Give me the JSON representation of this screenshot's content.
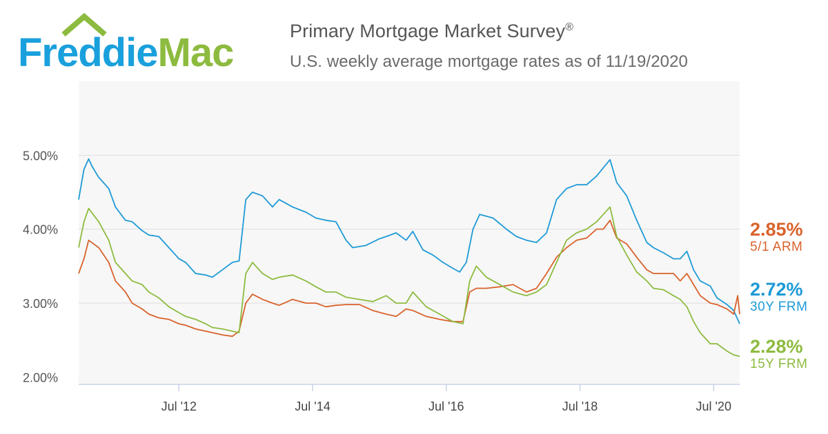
{
  "header": {
    "logo_text": "FreddieMac",
    "title": "Primary Mortgage Market Survey",
    "title_mark": "®",
    "subtitle": "U.S. weekly average mortgage rates as of 11/19/2020"
  },
  "colors": {
    "brand_blue": "#1aa0dc",
    "brand_green": "#8dbb3f",
    "frm30": "#1d9ad6",
    "arm51": "#d9622b",
    "frm15": "#8dbb3f",
    "plot_bg": "#f7f7f7",
    "grid": "#dedede"
  },
  "callouts": [
    {
      "value": "2.85%",
      "label": "5/1 ARM",
      "color": "#d9622b"
    },
    {
      "value": "2.72%",
      "label": "30Y FRM",
      "color": "#1d9ad6"
    },
    {
      "value": "2.28%",
      "label": "15Y FRM",
      "color": "#8dbb3f"
    }
  ],
  "chart_data": {
    "type": "line",
    "title": "Primary Mortgage Market Survey",
    "subtitle": "U.S. weekly average mortgage rates as of 11/19/2020",
    "x_ticks": [
      "Jul '12",
      "Jul '14",
      "Jul '16",
      "Jul '18",
      "Jul '20"
    ],
    "x_tick_values": [
      2012.5,
      2014.5,
      2016.5,
      2018.5,
      2020.5
    ],
    "xlim": [
      2011.0,
      2020.89
    ],
    "y_ticks": [
      "2.00%",
      "3.00%",
      "4.00%",
      "5.00%"
    ],
    "y_tick_values": [
      2.0,
      3.0,
      4.0,
      5.0
    ],
    "ylim": [
      1.9,
      6.0
    ],
    "grid": true,
    "series": [
      {
        "name": "30Y FRM",
        "color": "#1d9ad6",
        "x": [
          2011.0,
          2011.08,
          2011.15,
          2011.2,
          2011.3,
          2011.45,
          2011.55,
          2011.7,
          2011.8,
          2011.95,
          2012.05,
          2012.2,
          2012.35,
          2012.5,
          2012.6,
          2012.75,
          2012.9,
          2013.0,
          2013.15,
          2013.3,
          2013.4,
          2013.5,
          2013.6,
          2013.75,
          2013.9,
          2014.0,
          2014.2,
          2014.4,
          2014.55,
          2014.7,
          2014.85,
          2015.0,
          2015.1,
          2015.3,
          2015.5,
          2015.6,
          2015.75,
          2015.9,
          2016.0,
          2016.15,
          2016.3,
          2016.45,
          2016.6,
          2016.7,
          2016.8,
          2016.9,
          2017.0,
          2017.2,
          2017.4,
          2017.55,
          2017.7,
          2017.85,
          2018.0,
          2018.15,
          2018.3,
          2018.45,
          2018.6,
          2018.75,
          2018.85,
          2018.95,
          2019.05,
          2019.2,
          2019.35,
          2019.5,
          2019.6,
          2019.75,
          2019.9,
          2020.0,
          2020.1,
          2020.2,
          2020.3,
          2020.45,
          2020.55,
          2020.7,
          2020.8,
          2020.89
        ],
        "y": [
          4.4,
          4.81,
          4.95,
          4.85,
          4.7,
          4.55,
          4.3,
          4.12,
          4.1,
          3.98,
          3.92,
          3.9,
          3.75,
          3.6,
          3.55,
          3.4,
          3.38,
          3.35,
          3.45,
          3.55,
          3.57,
          4.4,
          4.5,
          4.45,
          4.3,
          4.4,
          4.3,
          4.23,
          4.15,
          4.12,
          4.1,
          3.85,
          3.75,
          3.78,
          3.87,
          3.9,
          3.95,
          3.85,
          3.97,
          3.72,
          3.65,
          3.55,
          3.47,
          3.42,
          3.55,
          4.0,
          4.2,
          4.15,
          4.0,
          3.9,
          3.85,
          3.82,
          3.95,
          4.4,
          4.55,
          4.6,
          4.6,
          4.72,
          4.83,
          4.94,
          4.63,
          4.45,
          4.12,
          3.82,
          3.75,
          3.68,
          3.6,
          3.6,
          3.7,
          3.45,
          3.3,
          3.23,
          3.07,
          2.98,
          2.9,
          2.72
        ]
      },
      {
        "name": "5/1 ARM",
        "color": "#d9622b",
        "x": [
          2011.0,
          2011.08,
          2011.15,
          2011.3,
          2011.45,
          2011.55,
          2011.7,
          2011.8,
          2011.95,
          2012.05,
          2012.2,
          2012.35,
          2012.5,
          2012.6,
          2012.75,
          2012.9,
          2013.0,
          2013.15,
          2013.3,
          2013.4,
          2013.5,
          2013.6,
          2013.75,
          2013.9,
          2014.0,
          2014.2,
          2014.4,
          2014.55,
          2014.7,
          2014.85,
          2015.0,
          2015.2,
          2015.4,
          2015.6,
          2015.75,
          2015.9,
          2016.0,
          2016.2,
          2016.4,
          2016.6,
          2016.75,
          2016.85,
          2016.95,
          2017.1,
          2017.3,
          2017.5,
          2017.7,
          2017.85,
          2018.0,
          2018.15,
          2018.3,
          2018.45,
          2018.6,
          2018.75,
          2018.85,
          2018.95,
          2019.05,
          2019.2,
          2019.35,
          2019.5,
          2019.6,
          2019.75,
          2019.9,
          2020.0,
          2020.1,
          2020.2,
          2020.3,
          2020.45,
          2020.55,
          2020.7,
          2020.8,
          2020.86,
          2020.89
        ],
        "y": [
          3.4,
          3.6,
          3.85,
          3.75,
          3.55,
          3.3,
          3.15,
          3.0,
          2.92,
          2.85,
          2.8,
          2.78,
          2.72,
          2.7,
          2.65,
          2.62,
          2.6,
          2.57,
          2.55,
          2.62,
          3.0,
          3.12,
          3.05,
          3.0,
          2.97,
          3.05,
          3.0,
          3.0,
          2.95,
          2.97,
          2.98,
          2.98,
          2.9,
          2.85,
          2.82,
          2.92,
          2.9,
          2.82,
          2.78,
          2.75,
          2.75,
          3.15,
          3.2,
          3.2,
          3.22,
          3.25,
          3.15,
          3.2,
          3.4,
          3.62,
          3.75,
          3.85,
          3.88,
          4.0,
          4.0,
          4.12,
          3.88,
          3.8,
          3.62,
          3.45,
          3.4,
          3.4,
          3.4,
          3.3,
          3.4,
          3.25,
          3.1,
          3.0,
          2.98,
          2.92,
          2.85,
          3.1,
          2.85
        ]
      },
      {
        "name": "15Y FRM",
        "color": "#8dbb3f",
        "x": [
          2011.0,
          2011.08,
          2011.15,
          2011.3,
          2011.45,
          2011.55,
          2011.7,
          2011.8,
          2011.95,
          2012.05,
          2012.2,
          2012.35,
          2012.5,
          2012.6,
          2012.75,
          2012.9,
          2013.0,
          2013.15,
          2013.3,
          2013.4,
          2013.5,
          2013.6,
          2013.75,
          2013.9,
          2014.0,
          2014.2,
          2014.4,
          2014.55,
          2014.7,
          2014.85,
          2015.0,
          2015.2,
          2015.4,
          2015.6,
          2015.75,
          2015.9,
          2016.0,
          2016.2,
          2016.4,
          2016.6,
          2016.75,
          2016.85,
          2016.95,
          2017.1,
          2017.3,
          2017.5,
          2017.7,
          2017.85,
          2018.0,
          2018.15,
          2018.3,
          2018.45,
          2018.6,
          2018.75,
          2018.85,
          2018.95,
          2019.05,
          2019.2,
          2019.35,
          2019.5,
          2019.6,
          2019.75,
          2019.9,
          2020.0,
          2020.1,
          2020.2,
          2020.3,
          2020.45,
          2020.55,
          2020.7,
          2020.8,
          2020.89
        ],
        "y": [
          3.75,
          4.1,
          4.28,
          4.1,
          3.85,
          3.55,
          3.4,
          3.3,
          3.25,
          3.15,
          3.07,
          2.95,
          2.87,
          2.82,
          2.78,
          2.72,
          2.67,
          2.65,
          2.62,
          2.6,
          3.4,
          3.55,
          3.4,
          3.32,
          3.35,
          3.38,
          3.3,
          3.22,
          3.15,
          3.15,
          3.08,
          3.05,
          3.02,
          3.1,
          3.0,
          3.0,
          3.15,
          2.95,
          2.85,
          2.75,
          2.72,
          3.3,
          3.5,
          3.35,
          3.25,
          3.15,
          3.1,
          3.15,
          3.25,
          3.55,
          3.85,
          3.95,
          4.0,
          4.1,
          4.2,
          4.3,
          3.9,
          3.65,
          3.42,
          3.3,
          3.2,
          3.18,
          3.1,
          3.05,
          2.95,
          2.75,
          2.6,
          2.45,
          2.45,
          2.35,
          2.3,
          2.28
        ]
      }
    ]
  }
}
